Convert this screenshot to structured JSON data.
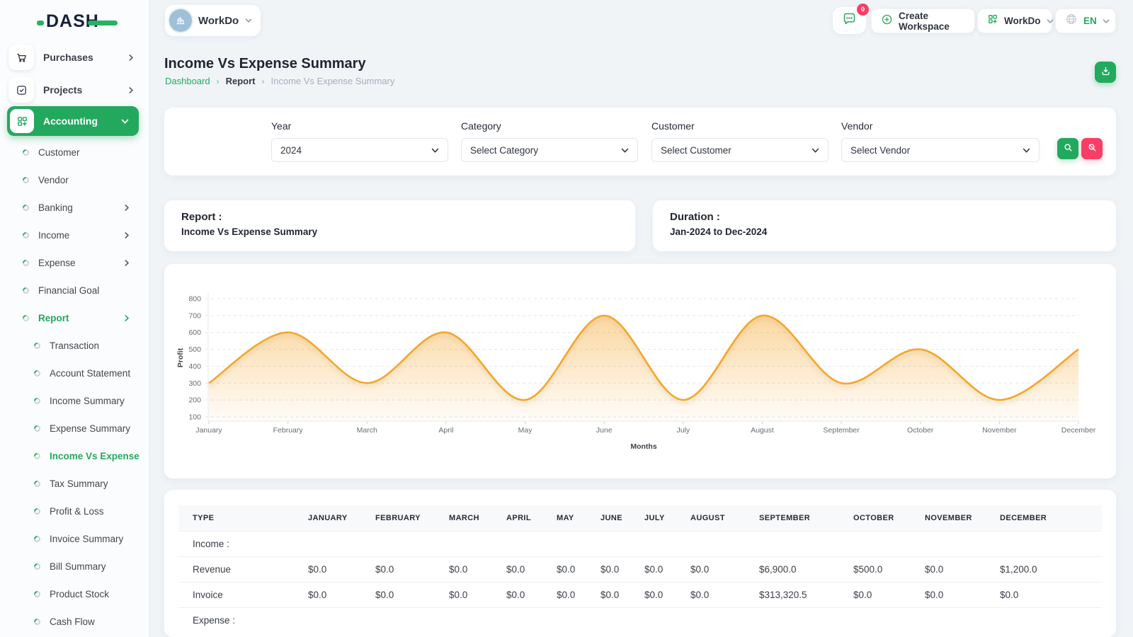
{
  "brand": {
    "logo_text": "DASH"
  },
  "topbar": {
    "workspace_chip": {
      "name": "WorkDo"
    },
    "chat_badge": "0",
    "create_workspace_label": "Create Workspace",
    "workspace_menu_label": "WorkDo",
    "language_label": "EN"
  },
  "sidebar": {
    "main_items": [
      {
        "label": "Purchases",
        "icon": "cart",
        "chevron": true
      },
      {
        "label": "Projects",
        "icon": "checklist",
        "chevron": true
      }
    ],
    "accounting": {
      "label": "Accounting"
    },
    "accounting_items": [
      {
        "label": "Customer"
      },
      {
        "label": "Vendor"
      },
      {
        "label": "Banking",
        "chevron": true
      },
      {
        "label": "Income",
        "chevron": true
      },
      {
        "label": "Expense",
        "chevron": true
      },
      {
        "label": "Financial Goal"
      },
      {
        "label": "Report",
        "chevron": true,
        "active": true
      }
    ],
    "report_items": [
      {
        "label": "Transaction"
      },
      {
        "label": "Account Statement"
      },
      {
        "label": "Income Summary"
      },
      {
        "label": "Expense Summary"
      },
      {
        "label": "Income Vs Expense",
        "active": true
      },
      {
        "label": "Tax Summary"
      },
      {
        "label": "Profit & Loss"
      },
      {
        "label": "Invoice Summary"
      },
      {
        "label": "Bill Summary"
      },
      {
        "label": "Product Stock"
      },
      {
        "label": "Cash Flow"
      }
    ]
  },
  "page": {
    "title": "Income Vs Expense Summary",
    "breadcrumb": {
      "home": "Dashboard",
      "section": "Report",
      "current": "Income Vs Expense Summary"
    }
  },
  "filters": {
    "year": {
      "label": "Year",
      "value": "2024"
    },
    "category": {
      "label": "Category",
      "value": "Select Category"
    },
    "customer": {
      "label": "Customer",
      "value": "Select Customer"
    },
    "vendor": {
      "label": "Vendor",
      "value": "Select Vendor"
    }
  },
  "summary_cards": {
    "report": {
      "label": "Report :",
      "value": "Income Vs Expense Summary"
    },
    "duration": {
      "label": "Duration :",
      "value": "Jan-2024 to Dec-2024"
    }
  },
  "chart_data": {
    "type": "area",
    "x": [
      "January",
      "February",
      "March",
      "April",
      "May",
      "June",
      "July",
      "August",
      "September",
      "October",
      "November",
      "December"
    ],
    "series": [
      {
        "name": "Profit",
        "values": [
          300,
          600,
          300,
          600,
          200,
          700,
          200,
          700,
          300,
          500,
          200,
          500
        ]
      }
    ],
    "xlabel": "Months",
    "ylabel": "Profit",
    "ylim": [
      100,
      800
    ],
    "ytick_step": 100,
    "grid": true,
    "legend": "none",
    "line_color": "#f5a62c"
  },
  "table": {
    "columns": [
      "TYPE",
      "JANUARY",
      "FEBRUARY",
      "MARCH",
      "APRIL",
      "MAY",
      "JUNE",
      "JULY",
      "AUGUST",
      "SEPTEMBER",
      "OCTOBER",
      "NOVEMBER",
      "DECEMBER"
    ],
    "sections": [
      {
        "heading": "Income :",
        "rows": [
          {
            "type": "Revenue",
            "values": [
              "$0.0",
              "$0.0",
              "$0.0",
              "$0.0",
              "$0.0",
              "$0.0",
              "$0.0",
              "$0.0",
              "$6,900.0",
              "$500.0",
              "$0.0",
              "$1,200.0"
            ]
          },
          {
            "type": "Invoice",
            "values": [
              "$0.0",
              "$0.0",
              "$0.0",
              "$0.0",
              "$0.0",
              "$0.0",
              "$0.0",
              "$0.0",
              "$313,320.5",
              "$0.0",
              "$0.0",
              "$0.0"
            ]
          }
        ]
      },
      {
        "heading": "Expense :",
        "rows": []
      }
    ]
  },
  "colors": {
    "primary_green": "#22a95e",
    "danger_pink": "#f73e64",
    "chart_line": "#f5a62c",
    "dark_navy": "#15213c"
  }
}
